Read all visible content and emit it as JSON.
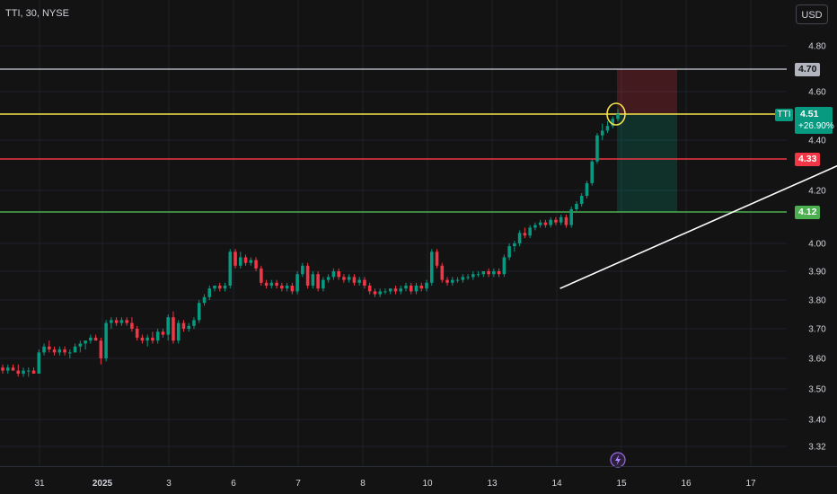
{
  "header": {
    "symbol_title": "TTI, 30, NYSE",
    "currency": "USD"
  },
  "colors": {
    "background": "#131313",
    "up": "#089981",
    "down": "#f23645",
    "grid": "#1e222d",
    "axis_text": "#d1d4dc"
  },
  "icons": {
    "replay": "lightning-icon"
  },
  "chart_data": {
    "type": "candlestick",
    "ylim": [
      3.32,
      4.86
    ],
    "y_ticks": [
      3.32,
      3.4,
      3.5,
      3.6,
      3.7,
      3.8,
      3.9,
      4.0,
      4.2,
      4.4,
      4.6,
      4.8
    ],
    "x_ticks": [
      "31",
      "2025",
      "3",
      "6",
      "7",
      "8",
      "10",
      "13",
      "14",
      "15",
      "16",
      "17"
    ],
    "horizontal_lines": [
      {
        "label": "4.70",
        "value": 4.7,
        "color": "#b2b5be"
      },
      {
        "label": "4.51",
        "value": 4.51,
        "color": "#f5e24a"
      },
      {
        "label": "4.33",
        "value": 4.33,
        "color": "#f23645"
      },
      {
        "label": "4.12",
        "value": 4.12,
        "color": "#4caf50"
      }
    ],
    "last_price": {
      "symbol": "TTI",
      "value": "4.51",
      "change": "+26.90%"
    },
    "position": {
      "entry": 4.51,
      "stop": 4.7,
      "target": 4.12
    },
    "trendlines": [
      {
        "from": [
          8.05,
          3.84
        ],
        "to": [
          15.8,
          4.71
        ]
      },
      {
        "from": [
          14.08,
          4.07
        ],
        "to": [
          15.8,
          4.71
        ]
      }
    ],
    "candles": [
      [
        3.57,
        3.58,
        3.55,
        3.56
      ],
      [
        3.56,
        3.58,
        3.55,
        3.57
      ],
      [
        3.57,
        3.58,
        3.56,
        3.56
      ],
      [
        3.56,
        3.58,
        3.54,
        3.55
      ],
      [
        3.55,
        3.57,
        3.54,
        3.56
      ],
      [
        3.56,
        3.57,
        3.54,
        3.56
      ],
      [
        3.56,
        3.57,
        3.55,
        3.55
      ],
      [
        3.55,
        3.63,
        3.55,
        3.62
      ],
      [
        3.62,
        3.65,
        3.61,
        3.64
      ],
      [
        3.64,
        3.66,
        3.62,
        3.63
      ],
      [
        3.63,
        3.64,
        3.61,
        3.62
      ],
      [
        3.62,
        3.64,
        3.61,
        3.63
      ],
      [
        3.63,
        3.64,
        3.61,
        3.62
      ],
      [
        3.62,
        3.63,
        3.6,
        3.62
      ],
      [
        3.62,
        3.65,
        3.62,
        3.64
      ],
      [
        3.64,
        3.66,
        3.62,
        3.65
      ],
      [
        3.65,
        3.66,
        3.63,
        3.66
      ],
      [
        3.66,
        3.68,
        3.65,
        3.67
      ],
      [
        3.67,
        3.68,
        3.66,
        3.66
      ],
      [
        3.66,
        3.67,
        3.58,
        3.6
      ],
      [
        3.6,
        3.73,
        3.59,
        3.72
      ],
      [
        3.72,
        3.74,
        3.7,
        3.73
      ],
      [
        3.73,
        3.74,
        3.71,
        3.72
      ],
      [
        3.72,
        3.74,
        3.71,
        3.73
      ],
      [
        3.73,
        3.74,
        3.71,
        3.72
      ],
      [
        3.72,
        3.74,
        3.69,
        3.7
      ],
      [
        3.7,
        3.71,
        3.66,
        3.67
      ],
      [
        3.67,
        3.68,
        3.65,
        3.66
      ],
      [
        3.66,
        3.68,
        3.64,
        3.67
      ],
      [
        3.67,
        3.69,
        3.65,
        3.66
      ],
      [
        3.66,
        3.7,
        3.65,
        3.69
      ],
      [
        3.69,
        3.7,
        3.67,
        3.68
      ],
      [
        3.68,
        3.75,
        3.66,
        3.74
      ],
      [
        3.74,
        3.76,
        3.65,
        3.66
      ],
      [
        3.66,
        3.73,
        3.65,
        3.72
      ],
      [
        3.72,
        3.73,
        3.69,
        3.7
      ],
      [
        3.7,
        3.72,
        3.69,
        3.71
      ],
      [
        3.71,
        3.74,
        3.7,
        3.73
      ],
      [
        3.73,
        3.8,
        3.72,
        3.79
      ],
      [
        3.79,
        3.82,
        3.78,
        3.81
      ],
      [
        3.81,
        3.85,
        3.8,
        3.84
      ],
      [
        3.84,
        3.85,
        3.83,
        3.85
      ],
      [
        3.85,
        3.86,
        3.83,
        3.84
      ],
      [
        3.84,
        3.86,
        3.83,
        3.85
      ],
      [
        3.85,
        3.98,
        3.84,
        3.97
      ],
      [
        3.97,
        3.98,
        3.91,
        3.92
      ],
      [
        3.92,
        3.97,
        3.91,
        3.95
      ],
      [
        3.95,
        3.96,
        3.92,
        3.93
      ],
      [
        3.93,
        3.95,
        3.92,
        3.94
      ],
      [
        3.94,
        3.95,
        3.9,
        3.91
      ],
      [
        3.91,
        3.92,
        3.85,
        3.86
      ],
      [
        3.86,
        3.87,
        3.84,
        3.85
      ],
      [
        3.85,
        3.87,
        3.84,
        3.86
      ],
      [
        3.86,
        3.87,
        3.84,
        3.85
      ],
      [
        3.85,
        3.86,
        3.83,
        3.84
      ],
      [
        3.84,
        3.86,
        3.83,
        3.85
      ],
      [
        3.85,
        3.86,
        3.82,
        3.83
      ],
      [
        3.83,
        3.9,
        3.82,
        3.89
      ],
      [
        3.89,
        3.93,
        3.88,
        3.92
      ],
      [
        3.92,
        3.93,
        3.84,
        3.85
      ],
      [
        3.85,
        3.9,
        3.84,
        3.89
      ],
      [
        3.89,
        3.9,
        3.83,
        3.84
      ],
      [
        3.84,
        3.88,
        3.83,
        3.87
      ],
      [
        3.87,
        3.89,
        3.86,
        3.88
      ],
      [
        3.88,
        3.91,
        3.87,
        3.9
      ],
      [
        3.9,
        3.91,
        3.87,
        3.88
      ],
      [
        3.88,
        3.89,
        3.86,
        3.87
      ],
      [
        3.87,
        3.89,
        3.86,
        3.88
      ],
      [
        3.88,
        3.89,
        3.85,
        3.86
      ],
      [
        3.86,
        3.88,
        3.85,
        3.87
      ],
      [
        3.87,
        3.88,
        3.84,
        3.85
      ],
      [
        3.85,
        3.86,
        3.82,
        3.83
      ],
      [
        3.83,
        3.84,
        3.81,
        3.82
      ],
      [
        3.82,
        3.84,
        3.81,
        3.83
      ],
      [
        3.83,
        3.84,
        3.82,
        3.83
      ],
      [
        3.83,
        3.84,
        3.82,
        3.84
      ],
      [
        3.84,
        3.85,
        3.82,
        3.83
      ],
      [
        3.83,
        3.85,
        3.82,
        3.84
      ],
      [
        3.84,
        3.86,
        3.83,
        3.85
      ],
      [
        3.85,
        3.86,
        3.82,
        3.83
      ],
      [
        3.83,
        3.86,
        3.82,
        3.85
      ],
      [
        3.85,
        3.86,
        3.83,
        3.84
      ],
      [
        3.84,
        3.87,
        3.83,
        3.86
      ],
      [
        3.86,
        3.98,
        3.85,
        3.97
      ],
      [
        3.97,
        3.98,
        3.91,
        3.92
      ],
      [
        3.92,
        3.93,
        3.86,
        3.87
      ],
      [
        3.87,
        3.88,
        3.85,
        3.86
      ],
      [
        3.86,
        3.88,
        3.85,
        3.87
      ],
      [
        3.87,
        3.88,
        3.86,
        3.87
      ],
      [
        3.87,
        3.89,
        3.86,
        3.88
      ],
      [
        3.88,
        3.89,
        3.87,
        3.88
      ],
      [
        3.88,
        3.9,
        3.87,
        3.89
      ],
      [
        3.89,
        3.9,
        3.88,
        3.89
      ],
      [
        3.89,
        3.9,
        3.88,
        3.9
      ],
      [
        3.9,
        3.91,
        3.88,
        3.89
      ],
      [
        3.89,
        3.91,
        3.88,
        3.9
      ],
      [
        3.9,
        3.91,
        3.88,
        3.89
      ],
      [
        3.89,
        3.96,
        3.88,
        3.95
      ],
      [
        3.95,
        4.0,
        3.94,
        3.99
      ],
      [
        3.99,
        4.01,
        3.97,
        4.0
      ],
      [
        4.0,
        4.05,
        3.99,
        4.04
      ],
      [
        4.04,
        4.06,
        4.02,
        4.03
      ],
      [
        4.03,
        4.07,
        4.02,
        4.06
      ],
      [
        4.06,
        4.08,
        4.05,
        4.07
      ],
      [
        4.07,
        4.09,
        4.06,
        4.08
      ],
      [
        4.08,
        4.09,
        4.06,
        4.07
      ],
      [
        4.07,
        4.1,
        4.06,
        4.09
      ],
      [
        4.09,
        4.1,
        4.07,
        4.08
      ],
      [
        4.08,
        4.11,
        4.07,
        4.1
      ],
      [
        4.1,
        4.11,
        4.06,
        4.07
      ],
      [
        4.07,
        4.14,
        4.06,
        4.13
      ],
      [
        4.13,
        4.16,
        4.12,
        4.15
      ],
      [
        4.15,
        4.19,
        4.14,
        4.18
      ],
      [
        4.18,
        4.24,
        4.17,
        4.23
      ],
      [
        4.23,
        4.33,
        4.22,
        4.32
      ],
      [
        4.32,
        4.43,
        4.31,
        4.42
      ],
      [
        4.42,
        4.47,
        4.4,
        4.44
      ],
      [
        4.44,
        4.48,
        4.43,
        4.46
      ],
      [
        4.46,
        4.5,
        4.45,
        4.49
      ],
      [
        4.49,
        4.53,
        4.48,
        4.51
      ]
    ]
  }
}
